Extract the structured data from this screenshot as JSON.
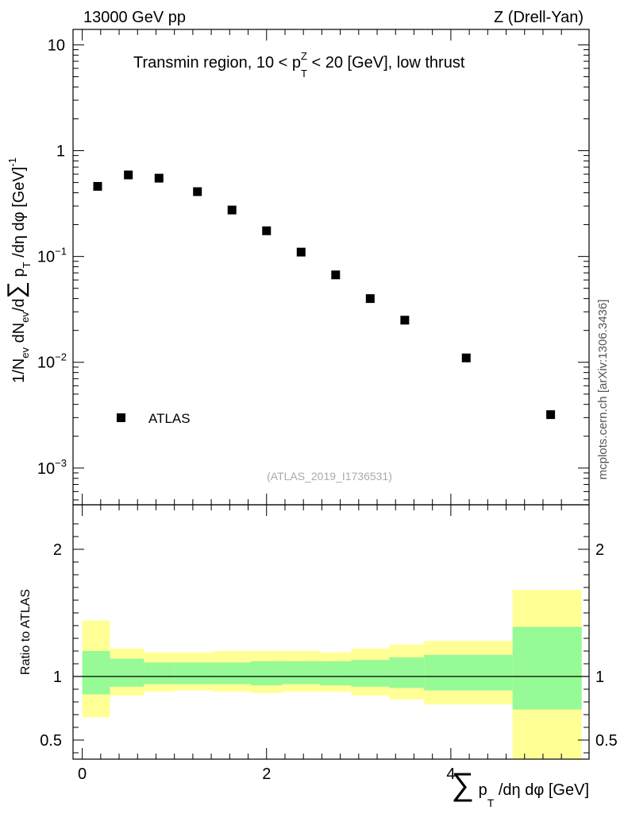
{
  "header": {
    "left": "13000 GeV pp",
    "right": "Z (Drell-Yan)"
  },
  "side_label": "mcplots.cern.ch [arXiv:1306.3436]",
  "chart_data": [
    {
      "type": "scatter",
      "scale": "log",
      "title": "Transmin region, 10 < p_T^Z < 20 [GeV], low thrust",
      "title_parts": {
        "prefix": "Transmin region, 10 < p",
        "sup": "Z",
        "sub": "T",
        "suffix": " < 20 [GeV], low thrust"
      },
      "ylabel": "1/N_ev dN_ev/d∑ p_T /dη dφ [GeV]^-1",
      "ylim": [
        0.00045,
        14
      ],
      "yticks": [
        {
          "value": 10,
          "label": "10"
        },
        {
          "value": 1,
          "label": "1"
        },
        {
          "value": 0.1,
          "base": "10",
          "exp": "−1"
        },
        {
          "value": 0.01,
          "base": "10",
          "exp": "−2"
        },
        {
          "value": 0.001,
          "base": "10",
          "exp": "−3"
        }
      ],
      "series": [
        {
          "name": "ATLAS",
          "x": [
            0.167,
            0.5,
            0.833,
            1.25,
            1.625,
            2.0,
            2.375,
            2.75,
            3.125,
            3.5,
            4.167,
            5.083
          ],
          "y": [
            0.46,
            0.59,
            0.55,
            0.41,
            0.275,
            0.175,
            0.11,
            0.067,
            0.04,
            0.025,
            0.011,
            0.0032
          ]
        }
      ],
      "legend": "ATLAS",
      "watermark": "(ATLAS_2019_I1736531)"
    },
    {
      "type": "area",
      "ylabel": "Ratio to ATLAS",
      "xlabel": "∑ p_T /dη dφ [GeV]",
      "xlabel_parts": {
        "sum": "∑",
        "p": "p",
        "sub": "T",
        "rest": "/dη dφ [GeV]"
      },
      "xlim": [
        -0.1,
        5.5
      ],
      "ylim": [
        0.35,
        2.35
      ],
      "xticks": [
        0,
        2,
        4
      ],
      "yticks": [
        {
          "value": 2,
          "label": "2"
        },
        {
          "value": 1,
          "label": "1"
        },
        {
          "value": 0.5,
          "label": "0.5"
        }
      ],
      "reference_line": 1,
      "bins": [
        {
          "lo": 0.0,
          "hi": 0.3,
          "yel": [
            0.68,
            1.44
          ],
          "grn": [
            0.86,
            1.2
          ]
        },
        {
          "lo": 0.3,
          "hi": 0.67,
          "yel": [
            0.85,
            1.22
          ],
          "grn": [
            0.92,
            1.14
          ]
        },
        {
          "lo": 0.67,
          "hi": 1.0,
          "yel": [
            0.88,
            1.19
          ],
          "grn": [
            0.94,
            1.11
          ]
        },
        {
          "lo": 1.0,
          "hi": 1.42,
          "yel": [
            0.89,
            1.19
          ],
          "grn": [
            0.94,
            1.11
          ]
        },
        {
          "lo": 1.42,
          "hi": 1.83,
          "yel": [
            0.88,
            1.2
          ],
          "grn": [
            0.94,
            1.11
          ]
        },
        {
          "lo": 1.83,
          "hi": 2.17,
          "yel": [
            0.87,
            1.2
          ],
          "grn": [
            0.93,
            1.12
          ]
        },
        {
          "lo": 2.17,
          "hi": 2.58,
          "yel": [
            0.88,
            1.2
          ],
          "grn": [
            0.94,
            1.12
          ]
        },
        {
          "lo": 2.58,
          "hi": 2.92,
          "yel": [
            0.88,
            1.19
          ],
          "grn": [
            0.93,
            1.12
          ]
        },
        {
          "lo": 2.92,
          "hi": 3.33,
          "yel": [
            0.85,
            1.22
          ],
          "grn": [
            0.92,
            1.13
          ]
        },
        {
          "lo": 3.33,
          "hi": 3.71,
          "yel": [
            0.82,
            1.25
          ],
          "grn": [
            0.91,
            1.15
          ]
        },
        {
          "lo": 3.71,
          "hi": 4.67,
          "yel": [
            0.78,
            1.28
          ],
          "grn": [
            0.89,
            1.17
          ]
        },
        {
          "lo": 4.67,
          "hi": 5.42,
          "yel": [
            0.0,
            1.68
          ],
          "grn": [
            0.74,
            1.39
          ]
        }
      ]
    }
  ],
  "colors": {
    "yellow_band": "#ffff96",
    "green_band": "#96fa96",
    "marker": "#000000"
  }
}
